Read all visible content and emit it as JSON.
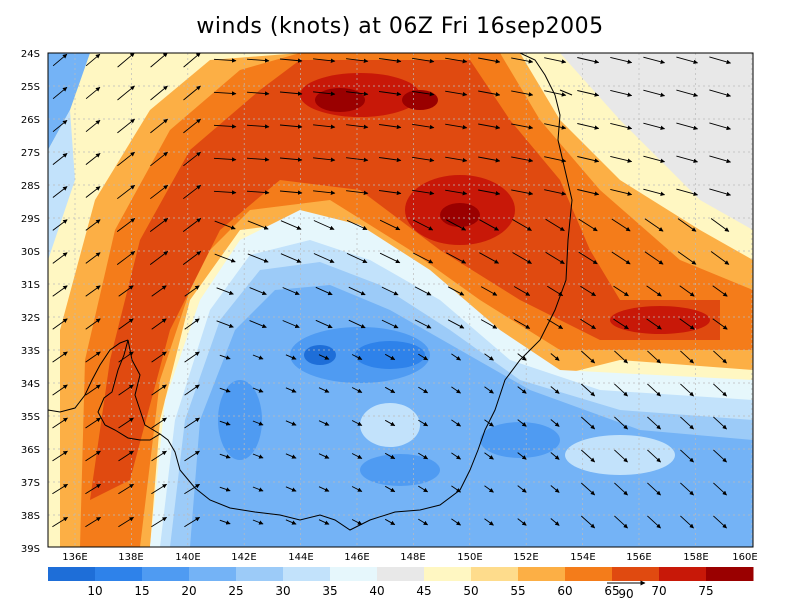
{
  "title": "winds (knots) at 06Z Fri 16sep2005",
  "lat_labels": [
    "24S",
    "25S",
    "26S",
    "27S",
    "28S",
    "29S",
    "30S",
    "31S",
    "32S",
    "33S",
    "34S",
    "35S",
    "36S",
    "37S",
    "38S",
    "39S"
  ],
  "lon_labels": [
    "136E",
    "138E",
    "140E",
    "142E",
    "144E",
    "146E",
    "148E",
    "150E",
    "152E",
    "154E",
    "156E",
    "158E",
    "160E"
  ],
  "colorbar": {
    "levels": [
      "10",
      "15",
      "20",
      "25",
      "30",
      "35",
      "40",
      "45",
      "50",
      "55",
      "60",
      "65",
      "70",
      "75"
    ],
    "colors": [
      "#1e6ed8",
      "#2e82ea",
      "#4f9bf2",
      "#74b3f6",
      "#9ccbf8",
      "#c2e2fb",
      "#e6f7fc",
      "#e8e8e8",
      "#fff7c2",
      "#fedc8c",
      "#fcaf45",
      "#f47c1a",
      "#e04a10",
      "#c81808",
      "#9a0000"
    ]
  },
  "reference_vector": "90",
  "map": {
    "lon_range": [
      135,
      160
    ],
    "lat_range": [
      -39,
      -24
    ],
    "grid": true,
    "speed_field": "winds (knots)"
  }
}
